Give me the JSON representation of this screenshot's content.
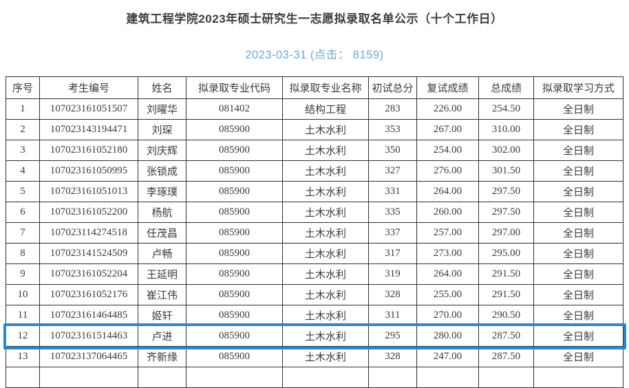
{
  "page": {
    "title": "建筑工程学院2023年硕士研究生一志愿拟录取名单公示（十个工作日）",
    "date_line": "2023-03-31 (点击： 8159)"
  },
  "colors": {
    "title_text": "#3d3d3d",
    "date_text": "#70a8d4",
    "table_border": "#2e2e2e",
    "highlight_border": "#2e86c8"
  },
  "table": {
    "columns": [
      "序号",
      "考生编号",
      "姓名",
      "拟录取专业代码",
      "拟录取专业名称",
      "初试总分",
      "复试成绩",
      "总成绩",
      "拟录取学习方式"
    ],
    "highlighted_row_index": 11,
    "partial_next_row": true,
    "rows": [
      [
        "1",
        "107023161051507",
        "刘曜华",
        "081402",
        "结构工程",
        "283",
        "226.00",
        "254.50",
        "全日制"
      ],
      [
        "2",
        "107023143194471",
        "刘琛",
        "085900",
        "土木水利",
        "353",
        "267.00",
        "310.00",
        "全日制"
      ],
      [
        "3",
        "107023161052180",
        "刘庆辉",
        "085900",
        "土木水利",
        "350",
        "254.00",
        "302.00",
        "全日制"
      ],
      [
        "4",
        "107023161050995",
        "张锁成",
        "085900",
        "土木水利",
        "327",
        "276.00",
        "301.50",
        "全日制"
      ],
      [
        "5",
        "107023161051013",
        "李琢璞",
        "085900",
        "土木水利",
        "331",
        "264.00",
        "297.50",
        "全日制"
      ],
      [
        "6",
        "107023161052200",
        "杨航",
        "085900",
        "土木水利",
        "335",
        "260.00",
        "297.50",
        "全日制"
      ],
      [
        "7",
        "107023114274518",
        "任茂昌",
        "085900",
        "土木水利",
        "337",
        "257.00",
        "297.00",
        "全日制"
      ],
      [
        "8",
        "107023141524509",
        "卢畅",
        "085900",
        "土木水利",
        "317",
        "273.00",
        "295.00",
        "全日制"
      ],
      [
        "9",
        "107023161052204",
        "王延明",
        "085900",
        "土木水利",
        "319",
        "264.00",
        "291.50",
        "全日制"
      ],
      [
        "10",
        "107023161052176",
        "崔江伟",
        "085900",
        "土木水利",
        "328",
        "255.00",
        "291.50",
        "全日制"
      ],
      [
        "11",
        "107023161464485",
        "姬轩",
        "085900",
        "土木水利",
        "311",
        "270.00",
        "290.50",
        "全日制"
      ],
      [
        "12",
        "107023161514463",
        "卢进",
        "085900",
        "土木水利",
        "295",
        "280.00",
        "287.50",
        "全日制"
      ],
      [
        "13",
        "107023137064465",
        "齐新缘",
        "085900",
        "土木水利",
        "328",
        "247.00",
        "287.50",
        "全日制"
      ]
    ]
  }
}
